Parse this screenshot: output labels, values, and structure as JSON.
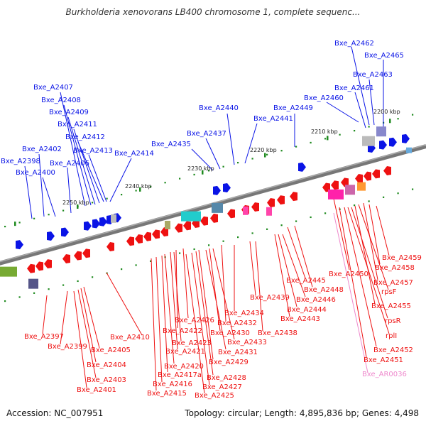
{
  "title": "Burkholderia xenovorans LB400 chromosome 1, complete sequenc...",
  "footer": {
    "accession": "Accession: NC_007951",
    "topology": "Topology: circular; Length: 4,895,836 bp; Genes: 4,498"
  },
  "colors": {
    "forward_gene": "#0a14e6",
    "reverse_gene": "#ee1111",
    "backbone": "#777777",
    "tick": "#1e8a1e",
    "rna_label": "#ee88cc"
  },
  "kbp_ticks": [
    "2200 kbp",
    "2210 kbp",
    "2220 kbp",
    "2230 kbp",
    "2240 kbp",
    "2250 kbp"
  ],
  "top_labels": [
    "Bxe_A2462",
    "Bxe_A2465",
    "Bxe_A2463",
    "Bxe_A2461",
    "Bxe_A2460",
    "Bxe_A2449",
    "Bxe_A2440",
    "Bxe_A2441",
    "Bxe_A2437",
    "Bxe_A2435",
    "Bxe_A2407",
    "Bxe_A2408",
    "Bxe_A2409",
    "Bxe_A2411",
    "Bxe_A2412",
    "Bxe_A2413",
    "Bxe_A2414",
    "Bxe_A2402",
    "Bxe_A2398",
    "Bxe_A2406",
    "Bxe_A2400"
  ],
  "bottom_labels": [
    "Bxe_A2459",
    "Bxe_A2458",
    "Bxe_A2457",
    "rpsF",
    "Bxe_A2455",
    "rpsR",
    "rplI",
    "Bxe_A2452",
    "Bxe_A2451",
    "Bxe_AR0036",
    "Bxe_A2450",
    "Bxe_A2445",
    "Bxe_A2448",
    "Bxe_A2446",
    "Bxe_A2444",
    "Bxe_A2443",
    "Bxe_A2439",
    "Bxe_A2438",
    "Bxe_A2434",
    "Bxe_A2432",
    "Bxe_A2426",
    "Bxe_A2422",
    "Bxe_A2430",
    "Bxe_A2433",
    "Bxe_A2423",
    "Bxe_A2431",
    "Bxe_A2421",
    "Bxe_A2429",
    "Bxe_A2420",
    "Bxe_A2428",
    "Bxe_A2417a",
    "Bxe_A2427",
    "Bxe_A2416",
    "Bxe_A2425",
    "Bxe_A2415",
    "Bxe_A2410",
    "Bxe_A2397",
    "Bxe_A2399",
    "Bxe_A2405",
    "Bxe_A2404",
    "Bxe_A2403",
    "Bxe_A2401"
  ]
}
